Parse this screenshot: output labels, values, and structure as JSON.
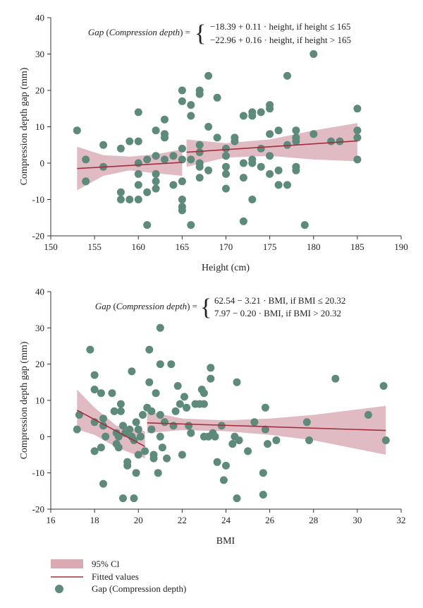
{
  "colors": {
    "ci_fill": "#d9aab4",
    "fit_line": "#a0303c",
    "point": "#5e8a7c",
    "axis": "#333333"
  },
  "legend": {
    "ci_label": "95% Cl",
    "fit_label": "Fitted values",
    "points_label": "Gap (Compression depth)"
  },
  "chart_data": [
    {
      "type": "scatter",
      "title": "",
      "xlabel": "Height (cm)",
      "ylabel": "Compression depth gap (mm)",
      "xlim": [
        150,
        190
      ],
      "ylim": [
        -20,
        40
      ],
      "xticks": [
        150,
        155,
        160,
        165,
        170,
        175,
        180,
        185,
        190
      ],
      "yticks": [
        -20,
        -10,
        0,
        10,
        20,
        30,
        40
      ],
      "equation": {
        "lhs_a": "Gap",
        "lhs_b": " (",
        "lhs_c": "Compression depth",
        "lhs_d": ") =",
        "line1": "−18.39 + 0.11 · height, if height ≤ 165",
        "line2": "−22.96 + 0.16 · height, if height > 165"
      },
      "fit_segments": [
        {
          "x": [
            153,
            165
          ],
          "y": [
            -1.5,
            0.2
          ]
        },
        {
          "x": [
            165.5,
            185
          ],
          "y": [
            3.0,
            6.1
          ]
        }
      ],
      "ci_bands": [
        {
          "x": [
            153,
            156,
            159,
            162,
            165
          ],
          "lower": [
            -7.5,
            -3.5,
            -2.0,
            -2.8,
            -3.5
          ],
          "upper": [
            4.5,
            2.2,
            1.8,
            2.4,
            3.8
          ]
        },
        {
          "x": [
            165.5,
            170,
            175,
            180,
            185
          ],
          "lower": [
            -1.0,
            1.5,
            2.0,
            1.0,
            0.5
          ],
          "upper": [
            6.5,
            5.5,
            6.5,
            9.0,
            11.0
          ]
        }
      ],
      "points": [
        [
          153,
          9
        ],
        [
          154,
          1
        ],
        [
          154,
          -5
        ],
        [
          156,
          5
        ],
        [
          156,
          -1
        ],
        [
          158,
          4
        ],
        [
          158,
          -8
        ],
        [
          158,
          -10
        ],
        [
          159,
          6
        ],
        [
          159,
          -10
        ],
        [
          160,
          14
        ],
        [
          160,
          6
        ],
        [
          160,
          0
        ],
        [
          160,
          -3
        ],
        [
          160,
          -6
        ],
        [
          160,
          -10
        ],
        [
          161,
          -8
        ],
        [
          161,
          -17
        ],
        [
          161,
          1
        ],
        [
          162,
          9
        ],
        [
          162,
          2
        ],
        [
          162,
          -3
        ],
        [
          162,
          -5
        ],
        [
          162,
          -7
        ],
        [
          163,
          12
        ],
        [
          163,
          8
        ],
        [
          163,
          7
        ],
        [
          163,
          1
        ],
        [
          164,
          2
        ],
        [
          164,
          -6
        ],
        [
          165,
          20
        ],
        [
          165,
          17
        ],
        [
          165,
          4
        ],
        [
          165,
          1
        ],
        [
          165,
          -5
        ],
        [
          165,
          -10
        ],
        [
          165,
          -12
        ],
        [
          165,
          -13
        ],
        [
          166,
          16
        ],
        [
          166,
          13
        ],
        [
          166,
          1
        ],
        [
          166,
          -17
        ],
        [
          167,
          20
        ],
        [
          167,
          19
        ],
        [
          167,
          5
        ],
        [
          167,
          3
        ],
        [
          167,
          0
        ],
        [
          167,
          -1
        ],
        [
          167,
          -4
        ],
        [
          168,
          24
        ],
        [
          168,
          10
        ],
        [
          168,
          -2
        ],
        [
          169,
          18
        ],
        [
          169,
          7
        ],
        [
          170,
          4
        ],
        [
          170,
          2
        ],
        [
          170,
          -1
        ],
        [
          170,
          -3
        ],
        [
          170,
          -7
        ],
        [
          171,
          7
        ],
        [
          171,
          6
        ],
        [
          172,
          13
        ],
        [
          172,
          0
        ],
        [
          172,
          -4
        ],
        [
          172,
          -16
        ],
        [
          173,
          14
        ],
        [
          173,
          13
        ],
        [
          173,
          1
        ],
        [
          173,
          0
        ],
        [
          173,
          -10
        ],
        [
          174,
          14
        ],
        [
          174,
          4
        ],
        [
          174,
          -1
        ],
        [
          175,
          16
        ],
        [
          175,
          15
        ],
        [
          175,
          8
        ],
        [
          175,
          2
        ],
        [
          175,
          -3
        ],
        [
          176,
          9
        ],
        [
          176,
          -2
        ],
        [
          176,
          -6
        ],
        [
          177,
          24
        ],
        [
          177,
          5
        ],
        [
          177,
          -6
        ],
        [
          178,
          9
        ],
        [
          178,
          7
        ],
        [
          178,
          6
        ],
        [
          178,
          -1
        ],
        [
          178,
          -2
        ],
        [
          179,
          -17
        ],
        [
          180,
          30
        ],
        [
          180,
          8
        ],
        [
          182,
          6
        ],
        [
          183,
          6
        ],
        [
          185,
          15
        ],
        [
          185,
          9
        ],
        [
          185,
          7
        ],
        [
          185,
          1
        ]
      ]
    },
    {
      "type": "scatter",
      "title": "",
      "xlabel": "BMI",
      "ylabel": "Compression depth gap (mm)",
      "xlim": [
        16,
        32
      ],
      "ylim": [
        -20,
        40
      ],
      "xticks": [
        16,
        18,
        20,
        22,
        24,
        26,
        28,
        30,
        32
      ],
      "yticks": [
        -20,
        -10,
        0,
        10,
        20,
        30,
        40
      ],
      "equation": {
        "lhs_a": "Gap",
        "lhs_b": " (",
        "lhs_c": "Compression depth",
        "lhs_d": ") =",
        "line1": "62.54 − 3.21 · BMI, if BMI ≤ 20.32",
        "line2": "7.97 − 0.20 · BMI, if BMI > 20.32"
      },
      "fit_segments": [
        {
          "x": [
            17.2,
            20.3
          ],
          "y": [
            7.3,
            -2.7
          ]
        },
        {
          "x": [
            20.4,
            31.3
          ],
          "y": [
            3.8,
            1.7
          ]
        }
      ],
      "ci_bands": [
        {
          "x": [
            17.2,
            18.0,
            19.0,
            20.3
          ],
          "lower": [
            2.0,
            0.5,
            -3.0,
            -6.0
          ],
          "upper": [
            13.0,
            8.0,
            3.0,
            1.5
          ]
        },
        {
          "x": [
            20.4,
            22,
            24,
            26,
            28,
            31.3
          ],
          "lower": [
            1.0,
            1.8,
            1.5,
            0.5,
            -1.0,
            -5.0
          ],
          "upper": [
            7.0,
            5.0,
            4.5,
            5.0,
            6.0,
            8.5
          ]
        }
      ],
      "points": [
        [
          17.2,
          2
        ],
        [
          17.3,
          6
        ],
        [
          17.8,
          24
        ],
        [
          18.0,
          17
        ],
        [
          18.0,
          13
        ],
        [
          18.0,
          4
        ],
        [
          18.0,
          -4
        ],
        [
          18.3,
          12
        ],
        [
          18.3,
          -3
        ],
        [
          18.4,
          -13
        ],
        [
          18.4,
          5
        ],
        [
          18.4,
          3
        ],
        [
          18.5,
          0
        ],
        [
          18.8,
          12
        ],
        [
          18.9,
          7
        ],
        [
          19.0,
          1
        ],
        [
          19.0,
          -2
        ],
        [
          19.1,
          0
        ],
        [
          19.1,
          -3
        ],
        [
          19.2,
          7
        ],
        [
          19.2,
          9
        ],
        [
          19.3,
          3
        ],
        [
          19.3,
          -17
        ],
        [
          19.4,
          1
        ],
        [
          19.5,
          -7
        ],
        [
          19.5,
          -8
        ],
        [
          19.6,
          2
        ],
        [
          19.7,
          18
        ],
        [
          19.7,
          0
        ],
        [
          19.8,
          -17
        ],
        [
          19.8,
          -1
        ],
        [
          19.9,
          4
        ],
        [
          19.9,
          -10
        ],
        [
          20.0,
          2
        ],
        [
          20.0,
          -5
        ],
        [
          20.1,
          0
        ],
        [
          20.2,
          6
        ],
        [
          20.3,
          -4
        ],
        [
          20.4,
          8
        ],
        [
          20.5,
          24
        ],
        [
          20.5,
          15
        ],
        [
          20.6,
          7
        ],
        [
          20.6,
          2
        ],
        [
          20.7,
          -5
        ],
        [
          20.7,
          -6
        ],
        [
          20.8,
          12
        ],
        [
          20.9,
          -10
        ],
        [
          21.0,
          30
        ],
        [
          21.0,
          20
        ],
        [
          21.0,
          0
        ],
        [
          21.0,
          6
        ],
        [
          21.1,
          -3
        ],
        [
          21.2,
          4
        ],
        [
          21.3,
          -6
        ],
        [
          21.5,
          20
        ],
        [
          21.6,
          3
        ],
        [
          21.7,
          7
        ],
        [
          21.8,
          14
        ],
        [
          21.9,
          9
        ],
        [
          22.0,
          -5
        ],
        [
          22.1,
          11
        ],
        [
          22.2,
          8
        ],
        [
          22.3,
          3
        ],
        [
          22.4,
          1
        ],
        [
          22.6,
          9
        ],
        [
          22.8,
          9
        ],
        [
          22.9,
          13
        ],
        [
          23.0,
          12
        ],
        [
          23.0,
          9
        ],
        [
          23.0,
          0
        ],
        [
          23.2,
          0
        ],
        [
          23.3,
          19
        ],
        [
          23.3,
          16
        ],
        [
          23.4,
          1
        ],
        [
          23.5,
          0
        ],
        [
          23.6,
          -7
        ],
        [
          23.8,
          3
        ],
        [
          23.9,
          -12
        ],
        [
          24.0,
          -8
        ],
        [
          24.3,
          -2
        ],
        [
          24.4,
          0
        ],
        [
          24.5,
          15
        ],
        [
          24.5,
          -17
        ],
        [
          24.6,
          -1
        ],
        [
          25.0,
          -4
        ],
        [
          25.3,
          4
        ],
        [
          25.7,
          -16
        ],
        [
          25.7,
          -10
        ],
        [
          25.8,
          8
        ],
        [
          25.8,
          2
        ],
        [
          25.9,
          -2
        ],
        [
          26.3,
          -1
        ],
        [
          27.7,
          4
        ],
        [
          27.8,
          -1
        ],
        [
          29.0,
          16
        ],
        [
          30.5,
          6
        ],
        [
          31.2,
          14
        ],
        [
          31.3,
          -1
        ]
      ]
    }
  ]
}
